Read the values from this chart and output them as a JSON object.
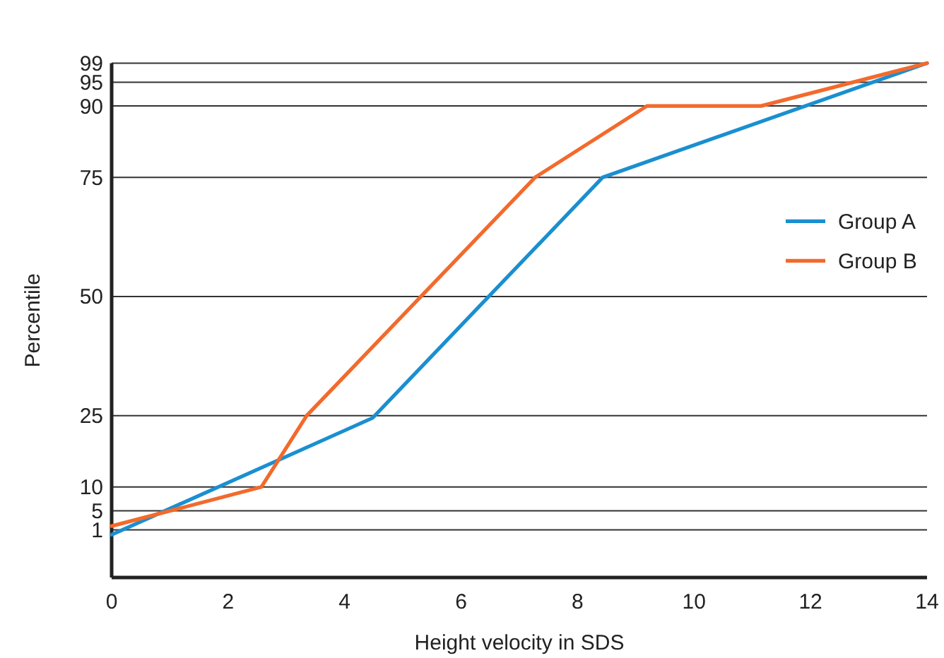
{
  "chart_data": {
    "type": "line",
    "xlabel": "Height velocity in SDS",
    "ylabel": "Percentile",
    "xlim": [
      0,
      14
    ],
    "xticks": [
      0,
      2,
      4,
      6,
      8,
      10,
      12,
      14
    ],
    "ylim": [
      -9,
      99
    ],
    "yticks": [
      1,
      5,
      10,
      25,
      50,
      75,
      90,
      95,
      99
    ],
    "grid": "y",
    "legend": "right",
    "marker": "none",
    "series": [
      {
        "name": "Group A",
        "color": "#1a8fd0",
        "x": [
          0,
          4.48,
          8.43,
          14
        ],
        "values": [
          0,
          24.5,
          75,
          99
        ]
      },
      {
        "name": "Group B",
        "color": "#f26a2c",
        "x": [
          0,
          2.57,
          3.35,
          7.27,
          9.19,
          11.15,
          14
        ],
        "values": [
          1.8,
          10,
          25,
          75,
          90,
          90,
          99
        ]
      }
    ]
  }
}
